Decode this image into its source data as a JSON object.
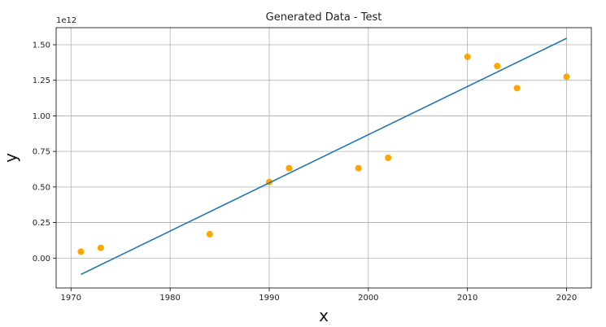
{
  "chart_data": {
    "type": "scatter",
    "title": "Generated Data - Test",
    "xlabel": "x",
    "ylabel": "y",
    "y_offset_label": "1e12",
    "xlim": [
      1968.5,
      2022.5
    ],
    "ylim": [
      -0.21,
      1.62
    ],
    "x_ticks": [
      1970,
      1980,
      1990,
      2000,
      2010,
      2020
    ],
    "x_tick_labels": [
      "1970",
      "1980",
      "1990",
      "2000",
      "2010",
      "2020"
    ],
    "y_ticks": [
      0.0,
      0.25,
      0.5,
      0.75,
      1.0,
      1.25,
      1.5
    ],
    "y_tick_labels": [
      "0.00",
      "0.25",
      "0.50",
      "0.75",
      "1.00",
      "1.25",
      "1.50"
    ],
    "grid": true,
    "series": [
      {
        "kind": "scatter",
        "color": "#ffa500",
        "points": [
          {
            "x": 1971,
            "y": 0.045
          },
          {
            "x": 1973,
            "y": 0.072
          },
          {
            "x": 1984,
            "y": 0.168
          },
          {
            "x": 1990,
            "y": 0.535
          },
          {
            "x": 1992,
            "y": 0.632
          },
          {
            "x": 1999,
            "y": 0.632
          },
          {
            "x": 2002,
            "y": 0.705
          },
          {
            "x": 2010,
            "y": 1.415
          },
          {
            "x": 2013,
            "y": 1.35
          },
          {
            "x": 2015,
            "y": 1.195
          },
          {
            "x": 2020,
            "y": 1.275
          }
        ]
      },
      {
        "kind": "line",
        "color": "#1f77b4",
        "points": [
          {
            "x": 1971,
            "y": -0.115
          },
          {
            "x": 2020,
            "y": 1.545
          }
        ]
      }
    ]
  }
}
